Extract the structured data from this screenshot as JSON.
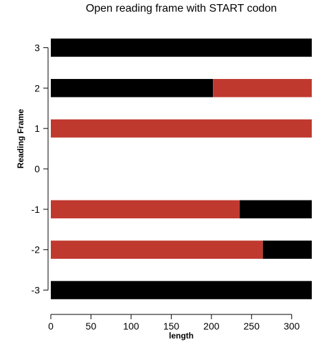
{
  "chart_data": {
    "type": "bar",
    "orientation": "horizontal",
    "stacked": true,
    "title": "Open reading frame with START codon",
    "xlabel": "length",
    "ylabel": "Reading Frame",
    "xlim": [
      0,
      325
    ],
    "x_ticks": [
      0,
      50,
      100,
      150,
      200,
      250,
      300
    ],
    "categories": [
      "3",
      "2",
      "1",
      "0",
      "-1",
      "-2",
      "-3"
    ],
    "series": [
      {
        "color": "#000000",
        "segments": [
          [
            0,
            325
          ],
          [
            0,
            202
          ],
          null,
          null,
          [
            235,
            325
          ],
          [
            264,
            325
          ],
          [
            0,
            325
          ]
        ]
      },
      {
        "color": "#c0392f",
        "segments": [
          null,
          [
            202,
            325
          ],
          [
            0,
            325
          ],
          null,
          [
            0,
            235
          ],
          [
            0,
            264
          ],
          null
        ]
      }
    ],
    "grid": false,
    "legend": "none"
  }
}
